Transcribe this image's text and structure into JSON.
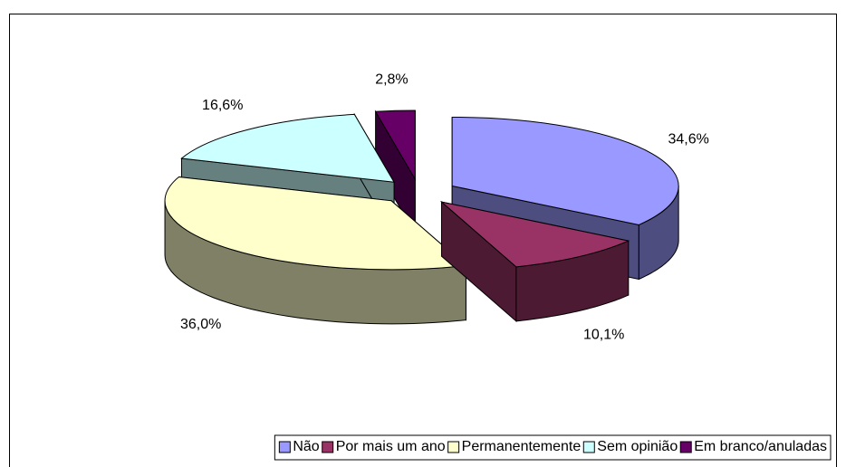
{
  "chart_data": {
    "type": "pie3d",
    "categories": [
      "Não",
      "Por mais um ano",
      "Permanentemente",
      "Sem opinião",
      "Em branco/anuladas"
    ],
    "values": [
      34.6,
      10.1,
      36.0,
      16.6,
      2.8
    ],
    "value_labels": [
      "34,6%",
      "10,1%",
      "36,0%",
      "16,6%",
      "2,8%"
    ],
    "colors": [
      "#9999ff",
      "#993366",
      "#ffffcc",
      "#ccffff",
      "#660066"
    ],
    "legend": "bottom"
  }
}
